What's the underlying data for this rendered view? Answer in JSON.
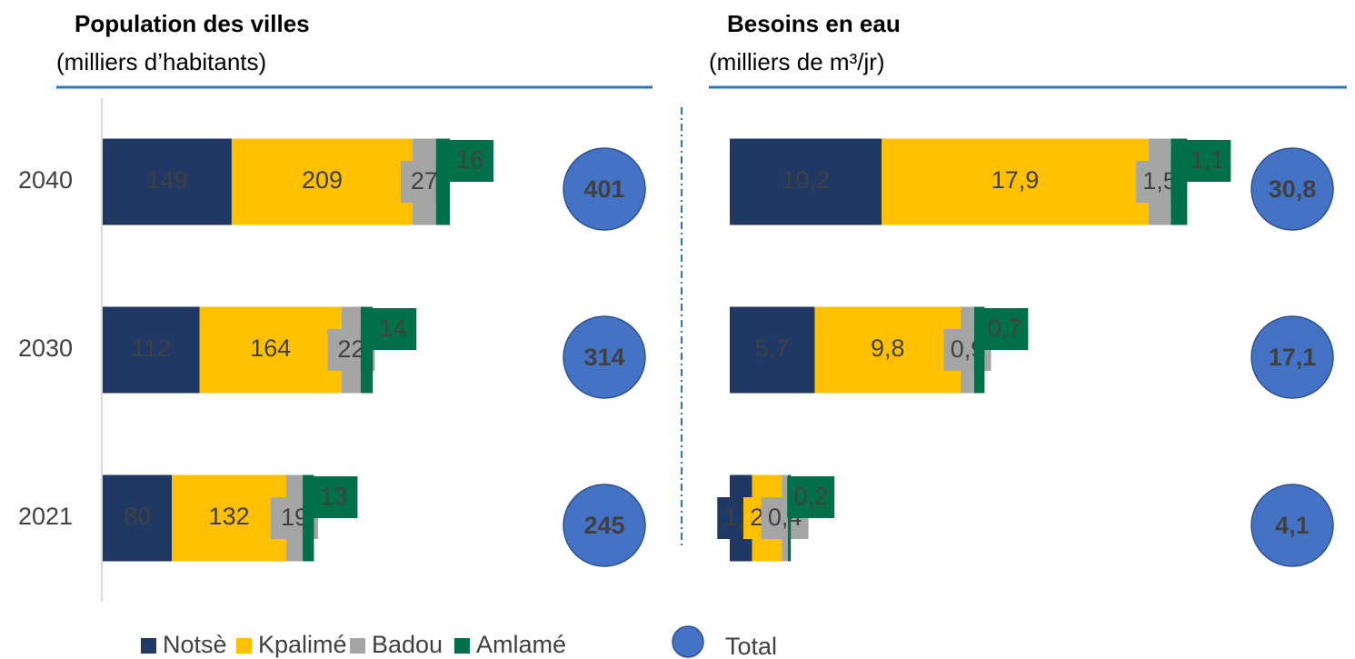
{
  "chart_data": [
    {
      "type": "stacked-bar",
      "title": "Population des villes",
      "subtitle": "(milliers d’habitants)",
      "categories": [
        "2040",
        "2030",
        "2021"
      ],
      "series": [
        {
          "name": "Notsè",
          "color": "#203864",
          "values": [
            149,
            112,
            80
          ]
        },
        {
          "name": "Kpalimé",
          "color": "#ffc000",
          "values": [
            209,
            164,
            132
          ]
        },
        {
          "name": "Badou",
          "color": "#a5a5a5",
          "values": [
            27,
            22,
            19
          ]
        },
        {
          "name": "Amlamé",
          "color": "#00704a",
          "values": [
            16,
            14,
            13
          ]
        }
      ],
      "total": {
        "name": "Total",
        "color": "#4472c4",
        "values": [
          401,
          314,
          245
        ]
      }
    },
    {
      "type": "stacked-bar",
      "title": "Besoins en eau",
      "subtitle": "(milliers de m³/jr)",
      "series": [
        {
          "color": "#203864",
          "values": [
            10.2,
            5.7,
            1.5
          ],
          "value_labels": [
            "10,2",
            "5,7",
            "1,5"
          ]
        },
        {
          "color": "#ffc000",
          "values": [
            17.9,
            9.8,
            2.0
          ],
          "value_labels": [
            "17,9",
            "9,8",
            "2,0"
          ]
        },
        {
          "color": "#a5a5a5",
          "values": [
            1.5,
            0.9,
            0.4
          ],
          "value_labels": [
            "1,5",
            "0,9",
            "0,4"
          ]
        },
        {
          "color": "#00704a",
          "values": [
            1.1,
            0.7,
            0.2
          ],
          "value_labels": [
            "1,1",
            "0,7",
            "0,2"
          ]
        }
      ],
      "total": {
        "color": "#4472c4",
        "values": [
          30.8,
          17.1,
          4.1
        ],
        "value_labels": [
          "30,8",
          "17,1",
          "4,1"
        ]
      }
    }
  ]
}
